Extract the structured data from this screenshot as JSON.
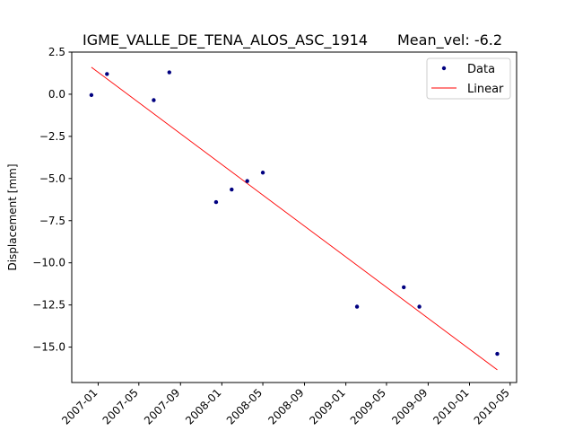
{
  "chart_data": {
    "type": "scatter",
    "title_left": "IGME_VALLE_DE_TENA_ALOS_ASC_1914",
    "title_right": "Mean_vel: -6.2",
    "xlabel": "",
    "ylabel": "Displacement [mm]",
    "xlim": [
      "2006-10-15",
      "2010-05-20"
    ],
    "ylim": [
      -17.1,
      2.5
    ],
    "yticks": [
      2.5,
      0.0,
      -2.5,
      -5.0,
      -7.5,
      -10.0,
      -12.5,
      -15.0
    ],
    "ytick_labels": [
      "2.5",
      "0.0",
      "−2.5",
      "−5.0",
      "−7.5",
      "−10.0",
      "−12.5",
      "−15.0"
    ],
    "xticks": [
      "2007-01-01",
      "2007-05-01",
      "2007-09-01",
      "2008-01-01",
      "2008-05-01",
      "2008-09-01",
      "2009-01-01",
      "2009-05-01",
      "2009-09-01",
      "2010-01-01",
      "2010-05-01"
    ],
    "xtick_labels": [
      "2007-01",
      "2007-05",
      "2007-09",
      "2008-01",
      "2008-05",
      "2008-09",
      "2009-01",
      "2009-05",
      "2009-09",
      "2010-01",
      "2010-05"
    ],
    "grid": false,
    "legend_position": "top-right",
    "series": [
      {
        "name": "Data",
        "kind": "points",
        "color": "#000080",
        "x": [
          "2006-12-12",
          "2007-01-27",
          "2007-06-14",
          "2007-07-30",
          "2007-12-15",
          "2008-01-30",
          "2008-03-16",
          "2008-05-01",
          "2009-02-03",
          "2009-06-21",
          "2009-08-06",
          "2010-03-24"
        ],
        "y": [
          -0.05,
          1.2,
          -0.35,
          1.3,
          -6.4,
          -5.65,
          -5.15,
          -4.65,
          -12.6,
          -11.45,
          -12.6,
          -15.4
        ]
      },
      {
        "name": "Linear",
        "kind": "line",
        "color": "#ff0000",
        "x": [
          "2006-12-12",
          "2010-03-24"
        ],
        "y": [
          1.6,
          -16.35
        ]
      }
    ]
  }
}
